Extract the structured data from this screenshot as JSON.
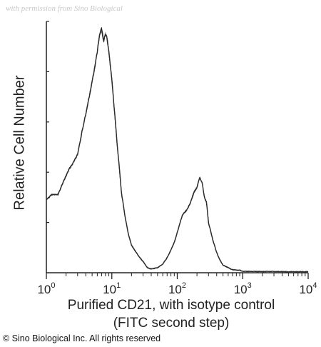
{
  "watermark": "with permission from Sino Biological",
  "copyright": "© Sino Biological Inc. All rights reserved",
  "chart_data": {
    "type": "area",
    "ylabel": "Relative Cell Number",
    "xlabel_line1": "Purified CD21, with isotype control",
    "xlabel_line2": "(FITC second step)",
    "x_scale": "log",
    "xlim": [
      1,
      10000
    ],
    "ylim": [
      0,
      100
    ],
    "grid": false,
    "colors": {
      "trace": "#2a2a2a",
      "trace_light": "#888888",
      "axis": "#222222"
    },
    "x_ticks": [
      {
        "base": "10",
        "exp": "0",
        "value": 1
      },
      {
        "base": "10",
        "exp": "1",
        "value": 10
      },
      {
        "base": "10",
        "exp": "2",
        "value": 100
      },
      {
        "base": "10",
        "exp": "3",
        "value": 1000
      },
      {
        "base": "10",
        "exp": "4",
        "value": 10000
      }
    ],
    "series": [
      {
        "x": [
          1,
          1.2,
          1.5,
          1.8,
          2.2,
          2.6,
          3,
          3.5,
          4,
          4.5,
          5,
          5.5,
          6,
          6.5,
          7,
          7.5,
          8,
          8.5,
          9,
          10,
          11,
          12,
          13,
          14,
          16,
          18,
          20,
          25,
          30,
          35,
          40,
          50,
          60,
          70,
          80,
          90,
          100,
          120,
          140,
          160,
          180,
          200,
          220,
          240,
          260,
          280,
          300,
          350,
          400,
          450,
          500,
          600,
          700,
          800,
          900,
          1000,
          1500,
          2000,
          3000,
          5000,
          10000
        ],
        "y": [
          29,
          31,
          31,
          36,
          41,
          44,
          47,
          56,
          63,
          70,
          76,
          82,
          88,
          95,
          97,
          92,
          95,
          93,
          88,
          77,
          64,
          52,
          42,
          32,
          22,
          15,
          11,
          7,
          4.5,
          2,
          1.5,
          2,
          3.5,
          6,
          9,
          12,
          16,
          23,
          25,
          28,
          32,
          34,
          38,
          36,
          30,
          28,
          20,
          13,
          8,
          5,
          3,
          2,
          1.2,
          1,
          1,
          0.6,
          0.5,
          0.5,
          0.5,
          0.4,
          0.4
        ]
      }
    ]
  }
}
